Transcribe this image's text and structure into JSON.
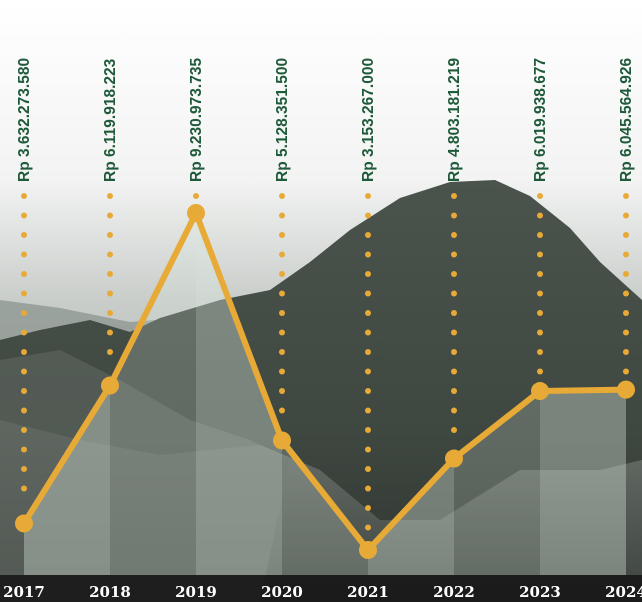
{
  "chart_data": {
    "type": "line",
    "title": "",
    "xlabel": "",
    "ylabel": "",
    "categories": [
      "2017",
      "2018",
      "2019",
      "2020",
      "2021",
      "2022",
      "2023",
      "2024"
    ],
    "series": [
      {
        "values": [
          3632273580,
          6119918223,
          9230973735,
          5128351500,
          3153267000,
          4803181219,
          6019938677,
          6045564926
        ]
      }
    ],
    "data_labels": [
      "Rp 3.632.273.580",
      "Rp 6.119.918.223",
      "Rp 9.230.973.735",
      "Rp 5.128.351.500",
      "Rp 3.153.267.000",
      "Rp 4.803.181.219",
      "Rp 6.019.938.677",
      "Rp 6.045.564.926"
    ],
    "grid": false,
    "legend": "none",
    "colors": {
      "line": "#e8aa36",
      "dots": "#e8aa36",
      "label_text": "#1f5a3a",
      "area_fill": "#d7e7dc",
      "year_band": "#161616"
    },
    "background": "photo of a mountain landscape in grayscale"
  }
}
